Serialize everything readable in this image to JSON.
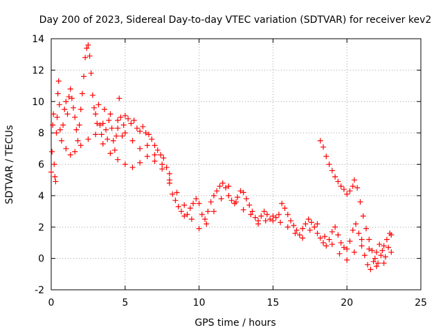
{
  "chart_data": {
    "type": "scatter",
    "title": "Day 200 of 2023, Sidereal Day-to-day VTEC variation (SDTVAR) for receiver kev2",
    "xlabel": "GPS time / hours",
    "ylabel": "SDTVAR / TECUs",
    "xlim": [
      0,
      25
    ],
    "ylim": [
      -2,
      14
    ],
    "x_ticks": [
      0,
      5,
      10,
      15,
      20,
      25
    ],
    "y_ticks": [
      -2,
      0,
      2,
      4,
      6,
      8,
      10,
      12,
      14
    ],
    "x_tick_labels": [
      "0",
      "5",
      "10",
      "15",
      "20",
      "25"
    ],
    "y_tick_labels": [
      "-2",
      "0",
      "2",
      "4",
      "6",
      "8",
      "10",
      "12",
      "14"
    ],
    "grid": true,
    "marker": "+",
    "series": [
      {
        "name": "kev2",
        "color": "#ff0000",
        "points": [
          [
            0.0,
            5.5
          ],
          [
            0.05,
            6.8
          ],
          [
            0.1,
            8.5
          ],
          [
            0.15,
            9.2
          ],
          [
            0.2,
            6.0
          ],
          [
            0.25,
            5.2
          ],
          [
            0.3,
            4.9
          ],
          [
            0.35,
            8.0
          ],
          [
            0.4,
            9.0
          ],
          [
            0.45,
            10.5
          ],
          [
            0.5,
            11.3
          ],
          [
            0.55,
            9.8
          ],
          [
            0.6,
            8.2
          ],
          [
            0.7,
            7.5
          ],
          [
            0.8,
            8.5
          ],
          [
            0.9,
            9.5
          ],
          [
            1.0,
            10.0
          ],
          [
            1.1,
            9.2
          ],
          [
            1.2,
            10.3
          ],
          [
            1.3,
            10.8
          ],
          [
            1.4,
            10.2
          ],
          [
            1.5,
            9.6
          ],
          [
            1.6,
            9.0
          ],
          [
            1.7,
            8.2
          ],
          [
            1.8,
            7.5
          ],
          [
            1.9,
            8.5
          ],
          [
            2.0,
            9.5
          ],
          [
            2.1,
            10.5
          ],
          [
            2.2,
            11.6
          ],
          [
            2.3,
            12.8
          ],
          [
            2.4,
            13.4
          ],
          [
            2.5,
            13.6
          ],
          [
            2.6,
            12.9
          ],
          [
            2.7,
            11.8
          ],
          [
            2.8,
            10.4
          ],
          [
            2.9,
            9.6
          ],
          [
            3.0,
            9.2
          ],
          [
            3.1,
            8.6
          ],
          [
            3.2,
            9.8
          ],
          [
            3.3,
            8.5
          ],
          [
            3.4,
            7.9
          ],
          [
            3.5,
            8.6
          ],
          [
            3.6,
            9.5
          ],
          [
            3.7,
            8.2
          ],
          [
            3.8,
            7.6
          ],
          [
            3.9,
            8.8
          ],
          [
            4.0,
            9.2
          ],
          [
            4.1,
            8.3
          ],
          [
            4.2,
            7.5
          ],
          [
            4.3,
            6.9
          ],
          [
            4.4,
            7.8
          ],
          [
            4.5,
            8.8
          ],
          [
            4.6,
            10.2
          ],
          [
            4.7,
            9.0
          ],
          [
            4.8,
            7.8
          ],
          [
            4.9,
            8.5
          ],
          [
            5.0,
            9.1
          ],
          [
            5.2,
            8.9
          ],
          [
            5.4,
            8.6
          ],
          [
            5.6,
            8.8
          ],
          [
            5.8,
            8.3
          ],
          [
            6.0,
            8.1
          ],
          [
            6.2,
            8.4
          ],
          [
            6.4,
            8.0
          ],
          [
            6.6,
            7.9
          ],
          [
            6.8,
            7.6
          ],
          [
            7.0,
            7.2
          ],
          [
            7.2,
            6.9
          ],
          [
            7.4,
            6.6
          ],
          [
            7.6,
            6.4
          ],
          [
            7.8,
            5.8
          ],
          [
            8.0,
            4.8
          ],
          [
            8.2,
            4.1
          ],
          [
            8.4,
            3.7
          ],
          [
            8.6,
            3.3
          ],
          [
            8.8,
            3.0
          ],
          [
            9.0,
            2.7
          ],
          [
            9.2,
            2.8
          ],
          [
            9.4,
            3.2
          ],
          [
            9.6,
            3.5
          ],
          [
            9.8,
            3.8
          ],
          [
            10.0,
            3.5
          ],
          [
            10.2,
            2.8
          ],
          [
            10.4,
            2.5
          ],
          [
            10.6,
            3.0
          ],
          [
            10.8,
            3.6
          ],
          [
            11.0,
            4.0
          ],
          [
            11.2,
            4.3
          ],
          [
            11.4,
            4.6
          ],
          [
            11.6,
            4.8
          ],
          [
            11.8,
            4.5
          ],
          [
            12.0,
            4.0
          ],
          [
            12.2,
            3.7
          ],
          [
            12.4,
            3.5
          ],
          [
            12.6,
            3.9
          ],
          [
            12.8,
            4.3
          ],
          [
            13.0,
            4.2
          ],
          [
            13.2,
            3.8
          ],
          [
            13.4,
            3.4
          ],
          [
            13.6,
            3.0
          ],
          [
            13.8,
            2.6
          ],
          [
            14.0,
            2.4
          ],
          [
            14.2,
            2.7
          ],
          [
            14.4,
            3.0
          ],
          [
            14.6,
            2.8
          ],
          [
            14.8,
            2.5
          ],
          [
            15.0,
            2.4
          ],
          [
            15.2,
            2.6
          ],
          [
            15.4,
            2.8
          ],
          [
            15.6,
            3.5
          ],
          [
            15.8,
            3.2
          ],
          [
            16.0,
            2.8
          ],
          [
            16.2,
            2.4
          ],
          [
            16.4,
            2.1
          ],
          [
            16.6,
            1.8
          ],
          [
            16.8,
            1.5
          ],
          [
            17.0,
            1.9
          ],
          [
            17.2,
            2.2
          ],
          [
            17.4,
            2.5
          ],
          [
            17.6,
            2.3
          ],
          [
            17.8,
            2.0
          ],
          [
            18.0,
            1.6
          ],
          [
            18.2,
            1.3
          ],
          [
            18.4,
            1.0
          ],
          [
            18.6,
            0.8
          ],
          [
            18.8,
            1.2
          ],
          [
            19.0,
            1.7
          ],
          [
            19.2,
            2.0
          ],
          [
            19.4,
            1.5
          ],
          [
            19.6,
            1.0
          ],
          [
            19.8,
            0.7
          ],
          [
            20.0,
            0.6
          ],
          [
            20.2,
            1.1
          ],
          [
            20.4,
            1.8
          ],
          [
            20.6,
            2.2
          ],
          [
            20.8,
            1.6
          ],
          [
            21.0,
            0.8
          ],
          [
            21.2,
            0.2
          ],
          [
            21.4,
            -0.4
          ],
          [
            21.6,
            -0.7
          ],
          [
            21.8,
            -0.2
          ],
          [
            22.0,
            0.4
          ],
          [
            22.2,
            0.9
          ],
          [
            22.4,
            0.5
          ],
          [
            22.6,
            0.1
          ],
          [
            22.8,
            0.7
          ],
          [
            23.0,
            1.5
          ],
          [
            1.0,
            7.0
          ],
          [
            1.3,
            6.6
          ],
          [
            1.6,
            6.8
          ],
          [
            2.0,
            7.2
          ],
          [
            2.5,
            7.6
          ],
          [
            3.0,
            7.9
          ],
          [
            3.5,
            7.3
          ],
          [
            4.0,
            6.7
          ],
          [
            4.5,
            6.3
          ],
          [
            5.0,
            6.0
          ],
          [
            5.5,
            5.8
          ],
          [
            6.0,
            6.1
          ],
          [
            6.5,
            6.5
          ],
          [
            7.0,
            6.2
          ],
          [
            7.5,
            5.7
          ],
          [
            8.0,
            5.0
          ],
          [
            8.5,
            4.2
          ],
          [
            9.0,
            3.4
          ],
          [
            9.5,
            2.5
          ],
          [
            10.0,
            1.9
          ],
          [
            10.5,
            2.2
          ],
          [
            11.0,
            3.0
          ],
          [
            11.5,
            3.8
          ],
          [
            12.0,
            4.6
          ],
          [
            12.5,
            3.6
          ],
          [
            13.0,
            3.1
          ],
          [
            13.5,
            2.8
          ],
          [
            14.0,
            2.2
          ],
          [
            14.5,
            2.4
          ],
          [
            15.0,
            2.7
          ],
          [
            15.5,
            2.3
          ],
          [
            16.0,
            2.0
          ],
          [
            16.5,
            1.6
          ],
          [
            17.0,
            1.3
          ],
          [
            17.5,
            1.8
          ],
          [
            18.0,
            2.2
          ],
          [
            18.5,
            1.4
          ],
          [
            19.0,
            0.9
          ],
          [
            19.5,
            0.3
          ],
          [
            20.0,
            -0.1
          ],
          [
            20.5,
            0.4
          ],
          [
            21.0,
            1.2
          ],
          [
            21.5,
            0.6
          ],
          [
            22.0,
            -0.5
          ],
          [
            22.5,
            -0.3
          ],
          [
            23.0,
            0.4
          ],
          [
            6.5,
            7.2
          ],
          [
            7.0,
            6.6
          ],
          [
            7.5,
            6.0
          ],
          [
            8.0,
            5.4
          ],
          [
            6.0,
            7.0
          ],
          [
            5.5,
            7.5
          ],
          [
            5.0,
            8.0
          ],
          [
            4.5,
            8.3
          ],
          [
            18.2,
            7.5
          ],
          [
            18.4,
            7.1
          ],
          [
            18.6,
            6.5
          ],
          [
            18.8,
            6.0
          ],
          [
            19.0,
            5.6
          ],
          [
            19.2,
            5.2
          ],
          [
            19.4,
            4.9
          ],
          [
            19.6,
            4.6
          ],
          [
            19.8,
            4.4
          ],
          [
            20.0,
            4.1
          ],
          [
            20.2,
            4.3
          ],
          [
            20.4,
            4.6
          ],
          [
            20.5,
            5.0
          ],
          [
            20.7,
            4.5
          ],
          [
            20.9,
            3.6
          ],
          [
            21.1,
            2.7
          ],
          [
            21.3,
            1.9
          ],
          [
            21.5,
            1.2
          ],
          [
            21.7,
            0.5
          ],
          [
            21.9,
            0.0
          ],
          [
            22.1,
            -0.3
          ],
          [
            22.3,
            0.2
          ],
          [
            22.5,
            0.8
          ],
          [
            22.7,
            1.2
          ],
          [
            22.9,
            1.6
          ]
        ]
      }
    ]
  }
}
